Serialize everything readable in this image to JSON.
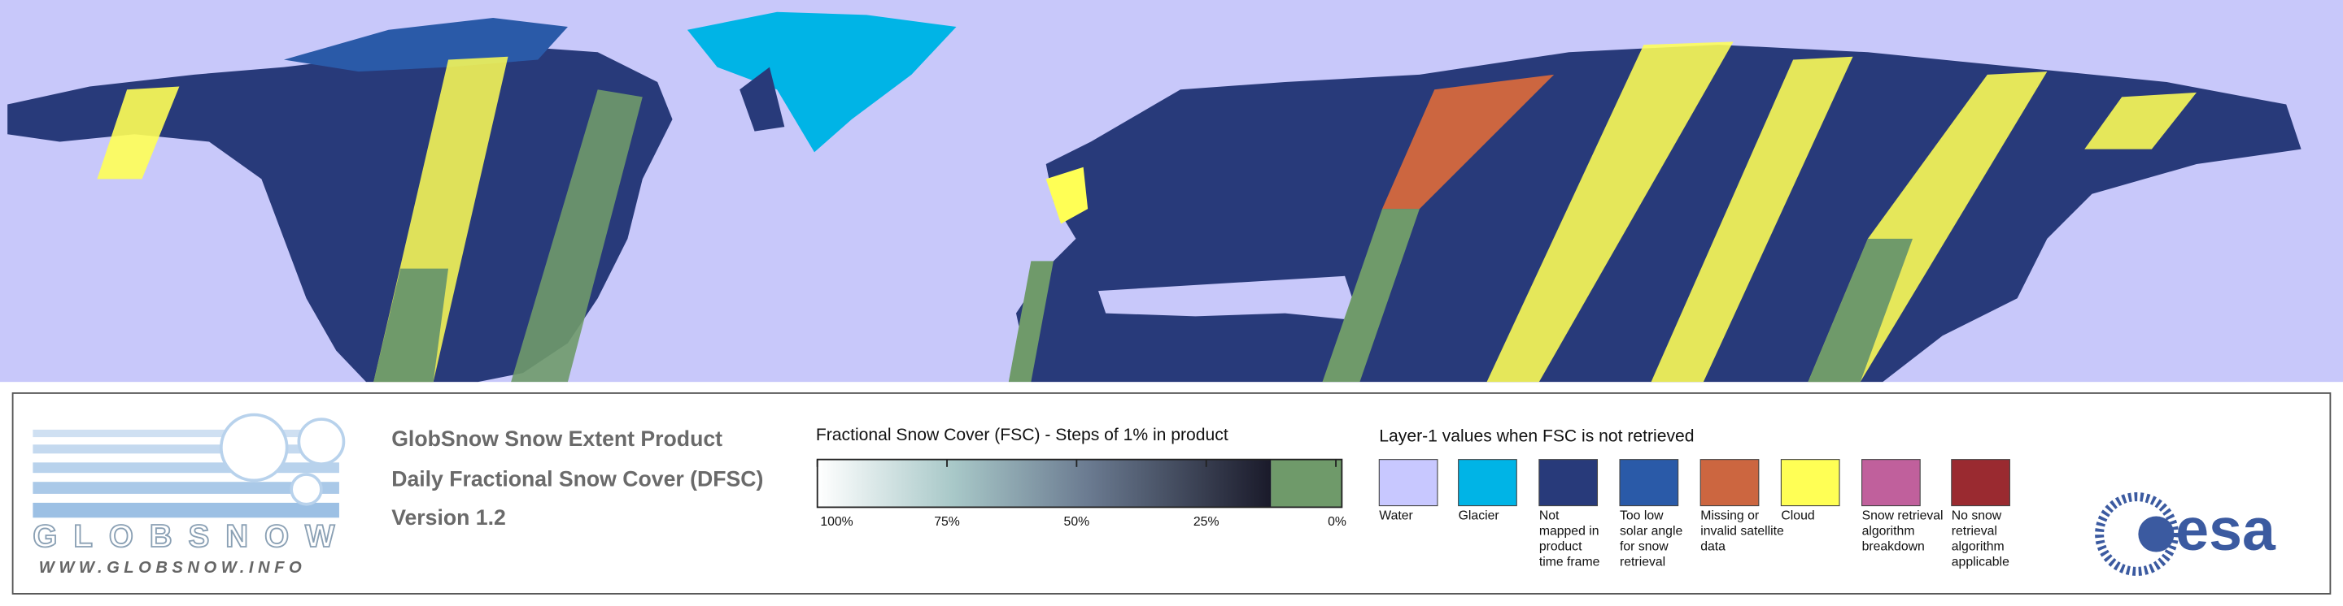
{
  "product": {
    "lines": [
      "GlobSnow Snow Extent Product",
      "Daily Fractional Snow Cover (DFSC)",
      "Version 1.2"
    ]
  },
  "logo": {
    "name": "GLOBSNOW",
    "url": "WWW.GLOBSNOW.INFO",
    "agency": "esa"
  },
  "fsc_legend": {
    "title": "Fractional Snow Cover (FSC) - Steps of 1% in product",
    "range": [
      100,
      0
    ],
    "ticks": [
      {
        "value": 100,
        "label": "100%"
      },
      {
        "value": 75,
        "label": "75%"
      },
      {
        "value": 50,
        "label": "50%"
      },
      {
        "value": 25,
        "label": "25%"
      },
      {
        "value": 0,
        "label": "0%"
      }
    ],
    "snow_free_color": "#6f9a6a"
  },
  "layer1_legend": {
    "title": "Layer-1 values when FSC is not retrieved",
    "items": [
      {
        "label": [
          "Water"
        ],
        "color": "#c8c8ff"
      },
      {
        "label": [
          "Glacier"
        ],
        "color": "#00b4e6"
      },
      {
        "label": [
          "Not",
          "mapped in",
          "product",
          "time frame"
        ],
        "color": "#283a7a"
      },
      {
        "label": [
          "Too low",
          "solar angle",
          "for snow",
          "retrieval"
        ],
        "color": "#2a5aa8"
      },
      {
        "label": [
          "Missing or",
          "invalid satellite",
          "data"
        ],
        "color": "#cc6640"
      },
      {
        "label": [
          "Cloud"
        ],
        "color": "#ffff55"
      },
      {
        "label": [
          "Snow retrieval",
          "algorithm",
          "breakdown"
        ],
        "color": "#c0609c"
      },
      {
        "label": [
          "No snow",
          "retrieval",
          "algorithm",
          "applicable"
        ],
        "color": "#9a2a30"
      }
    ]
  }
}
